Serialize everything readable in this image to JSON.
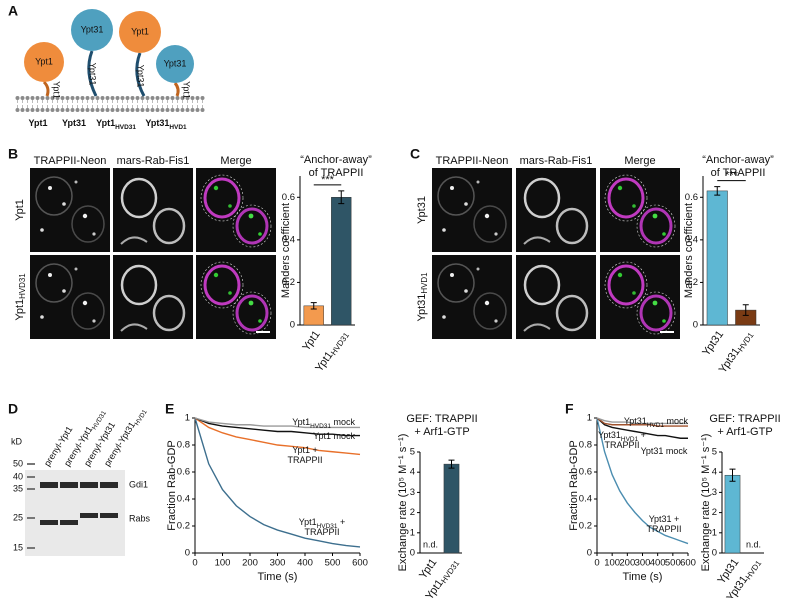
{
  "panels": {
    "a": {
      "label": "A",
      "heads": [
        "Ypt1",
        "Ypt31",
        "Ypt1",
        "Ypt31"
      ],
      "tails": [
        "Ypt1",
        "Ypt31",
        "Ypt31",
        "Ypt1"
      ],
      "constructs": [
        [
          "Ypt1"
        ],
        [
          "Ypt31"
        ],
        [
          "Ypt1",
          {
            "sub": "HVD31"
          }
        ],
        [
          "Ypt31",
          {
            "sub": "HVD1"
          }
        ]
      ]
    },
    "b": {
      "label": "B",
      "columns": [
        "TRAPPII-Neon",
        "mars-Rab-Fis1",
        "Merge"
      ],
      "rows": [
        [
          "Ypt1"
        ],
        [
          "Ypt1",
          {
            "sub": "HVD31"
          }
        ]
      ]
    },
    "c": {
      "label": "C",
      "columns": [
        "TRAPPII-Neon",
        "mars-Rab-Fis1",
        "Merge"
      ],
      "rows": [
        [
          "Ypt31"
        ],
        [
          "Ypt31",
          {
            "sub": "HVD1"
          }
        ]
      ]
    },
    "d": {
      "label": "D",
      "lanes": [
        [
          "prenyl-Ypt1"
        ],
        [
          "prenyl-Ypt1",
          {
            "sub": "HVD31"
          }
        ],
        [
          "prenyl-Ypt31"
        ],
        [
          "prenyl-Ypt31",
          {
            "sub": "HVD1"
          }
        ]
      ],
      "unit": "kD",
      "markers": [
        50,
        40,
        35,
        25,
        15
      ],
      "bands": [
        "Gdi1",
        "Rabs"
      ]
    },
    "e": {
      "label": "E"
    },
    "f": {
      "label": "F"
    }
  },
  "chart_data": [
    {
      "type": "bar",
      "title": [
        [
          "“Anchor-away”"
        ],
        [
          "of TRAPPII"
        ]
      ],
      "y_label": "Manders coefficient",
      "categories": [
        [
          "Ypt1"
        ],
        [
          "Ypt1",
          {
            "sub": "HVD31"
          }
        ]
      ],
      "values": [
        0.09,
        0.6
      ],
      "errors": [
        0.015,
        0.03
      ],
      "colors": [
        "#f39a4e",
        "#2f5566"
      ],
      "ylim": [
        0,
        0.7
      ],
      "yticks": [
        0,
        0.2,
        0.4,
        0.6
      ],
      "significance": "***"
    },
    {
      "type": "bar",
      "title": [
        [
          "“Anchor-away”"
        ],
        [
          "of TRAPPII"
        ]
      ],
      "y_label": "Manders coefficient",
      "categories": [
        [
          "Ypt31"
        ],
        [
          "Ypt31",
          {
            "sub": "HVD1"
          }
        ]
      ],
      "values": [
        0.63,
        0.07
      ],
      "errors": [
        0.02,
        0.025
      ],
      "colors": [
        "#5eb7d3",
        "#7a3b14"
      ],
      "ylim": [
        0,
        0.7
      ],
      "yticks": [
        0,
        0.2,
        0.4,
        0.6
      ],
      "significance": "***"
    },
    {
      "type": "line",
      "x_label": "Time (s)",
      "y_label": "Fraction Rab-GDP",
      "x": [
        0,
        50,
        100,
        150,
        200,
        250,
        300,
        350,
        400,
        450,
        500,
        550,
        600
      ],
      "xlim": [
        0,
        600
      ],
      "xticks": [
        0,
        100,
        200,
        300,
        400,
        500,
        600
      ],
      "ylim": [
        0,
        1
      ],
      "yticks": [
        0,
        0.2,
        0.4,
        0.6,
        0.8,
        1
      ],
      "series": [
        {
          "name": [
            [
              "Ypt1",
              {
                "sub": "HVD31"
              },
              " +"
            ],
            [
              "TRAPPII"
            ]
          ],
          "color": "#3d6f8e",
          "values": [
            1,
            0.66,
            0.47,
            0.35,
            0.27,
            0.21,
            0.17,
            0.14,
            0.11,
            0.09,
            0.07,
            0.055,
            0.045
          ]
        },
        {
          "name": [
            [
              "Ypt1 +"
            ],
            [
              "TRAPPII"
            ]
          ],
          "color": "#e8702a",
          "values": [
            1,
            0.93,
            0.89,
            0.86,
            0.84,
            0.82,
            0.8,
            0.79,
            0.78,
            0.76,
            0.75,
            0.74,
            0.73
          ]
        },
        {
          "name": [
            [
              "Ypt1 mock"
            ]
          ],
          "color": "#111111",
          "values": [
            1,
            0.96,
            0.94,
            0.93,
            0.92,
            0.91,
            0.9,
            0.9,
            0.89,
            0.88,
            0.88,
            0.87,
            0.87
          ]
        },
        {
          "name": [
            [
              "Ypt1",
              {
                "sub": "HVD31"
              },
              " mock"
            ]
          ],
          "color": "#9a9a9a",
          "values": [
            1,
            0.97,
            0.96,
            0.95,
            0.95,
            0.94,
            0.94,
            0.94,
            0.93,
            0.93,
            0.93,
            0.93,
            0.93
          ]
        }
      ]
    },
    {
      "type": "bar",
      "title": [
        [
          "GEF: TRAPPII"
        ],
        [
          "+ Arf1-GTP"
        ]
      ],
      "y_label": "Exchange rate (10⁵ M⁻¹ s⁻¹)",
      "categories": [
        [
          "Ypt1"
        ],
        [
          "Ypt1",
          {
            "sub": "HVD31"
          }
        ]
      ],
      "values": [
        null,
        4.4
      ],
      "value_labels": [
        "n.d.",
        null
      ],
      "errors": [
        null,
        0.2
      ],
      "colors": [
        null,
        "#2f5566"
      ],
      "ylim": [
        0,
        5
      ],
      "yticks": [
        0,
        1,
        2,
        3,
        4,
        5
      ]
    },
    {
      "type": "line",
      "x_label": "Time (s)",
      "y_label": "Fraction Rab-GDP",
      "x": [
        0,
        50,
        100,
        150,
        200,
        250,
        300,
        350,
        400,
        450,
        500,
        550,
        600
      ],
      "xlim": [
        0,
        600
      ],
      "xticks": [
        0,
        100,
        200,
        300,
        400,
        500,
        600
      ],
      "ylim": [
        0,
        1
      ],
      "yticks": [
        0,
        0.2,
        0.4,
        0.6,
        0.8,
        1
      ],
      "series": [
        {
          "name": [
            [
              "Ypt31 +"
            ],
            [
              "TRAPPII"
            ]
          ],
          "color": "#4b8db0",
          "values": [
            1,
            0.75,
            0.58,
            0.46,
            0.37,
            0.3,
            0.24,
            0.19,
            0.16,
            0.13,
            0.11,
            0.09,
            0.07
          ]
        },
        {
          "name": [
            [
              "Ypt31 mock"
            ]
          ],
          "color": "#111111",
          "values": [
            1,
            0.95,
            0.93,
            0.92,
            0.91,
            0.9,
            0.89,
            0.88,
            0.87,
            0.87,
            0.86,
            0.85,
            0.85
          ]
        },
        {
          "name": [
            [
              "Ypt31",
              {
                "sub": "HVD1"
              },
              " +"
            ],
            [
              "TRAPPII"
            ]
          ],
          "color": "#a0522d",
          "values": [
            1,
            0.96,
            0.95,
            0.95,
            0.95,
            0.95,
            0.95,
            0.95,
            0.94,
            0.94,
            0.94,
            0.94,
            0.94
          ]
        },
        {
          "name": [
            [
              "Ypt31",
              {
                "sub": "HVD1"
              },
              " mock"
            ]
          ],
          "color": "#9a9a9a",
          "values": [
            1,
            0.98,
            0.97,
            0.97,
            0.97,
            0.96,
            0.96,
            0.96,
            0.96,
            0.96,
            0.96,
            0.96,
            0.96
          ]
        }
      ]
    },
    {
      "type": "bar",
      "title": [
        [
          "GEF: TRAPPII"
        ],
        [
          "+ Arf1-GTP"
        ]
      ],
      "y_label": "Exchange rate (10⁵ M⁻¹ s⁻¹)",
      "categories": [
        [
          "Ypt31"
        ],
        [
          "Ypt31",
          {
            "sub": "HVD1"
          }
        ]
      ],
      "values": [
        3.85,
        null
      ],
      "value_labels": [
        null,
        "n.d."
      ],
      "errors": [
        0.3,
        null
      ],
      "colors": [
        "#5eb7d3",
        null
      ],
      "ylim": [
        0,
        5
      ],
      "yticks": [
        0,
        1,
        2,
        3,
        4,
        5
      ]
    }
  ]
}
